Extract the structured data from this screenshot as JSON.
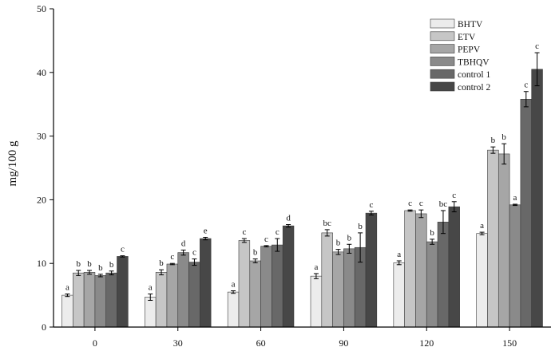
{
  "chart_data": {
    "type": "bar",
    "ylabel": "mg/100 g",
    "xlabel": "",
    "ylim": [
      0,
      50
    ],
    "yticks": [
      0,
      10,
      20,
      30,
      40,
      50
    ],
    "categories": [
      "0",
      "30",
      "60",
      "90",
      "120",
      "150"
    ],
    "legend_position": "top-right",
    "series": [
      {
        "name": "BHTV",
        "color": "#ececec",
        "values": [
          5.0,
          4.7,
          5.5,
          8.0,
          10.1,
          14.7
        ],
        "errors": [
          0.2,
          0.5,
          0.2,
          0.4,
          0.3,
          0.2
        ],
        "labels": [
          "a",
          "a",
          "a",
          "a",
          "a",
          "a"
        ]
      },
      {
        "name": "ETV",
        "color": "#c6c6c6",
        "values": [
          8.5,
          8.6,
          13.6,
          14.8,
          18.3,
          27.8
        ],
        "errors": [
          0.4,
          0.4,
          0.3,
          0.5,
          0.1,
          0.5
        ],
        "labels": [
          "b",
          "b",
          "c",
          "bc",
          "c",
          "b"
        ]
      },
      {
        "name": "PEPV",
        "color": "#a6a6a6",
        "values": [
          8.6,
          9.9,
          10.4,
          11.8,
          17.8,
          27.2
        ],
        "errors": [
          0.3,
          0.1,
          0.3,
          0.4,
          0.6,
          1.6
        ],
        "labels": [
          "b",
          "c",
          "b",
          "b",
          "c",
          "b"
        ]
      },
      {
        "name": "TBHQV",
        "color": "#8a8a8a",
        "values": [
          8.1,
          11.7,
          12.7,
          12.3,
          13.4,
          19.2
        ],
        "errors": [
          0.2,
          0.4,
          0.1,
          0.7,
          0.4,
          0.1
        ],
        "labels": [
          "b",
          "d",
          "c",
          "b",
          "b",
          "a"
        ]
      },
      {
        "name": "control 1",
        "color": "#686868",
        "values": [
          8.5,
          10.2,
          12.9,
          12.5,
          16.5,
          35.8
        ],
        "errors": [
          0.3,
          0.5,
          1.0,
          2.3,
          1.8,
          1.2
        ],
        "labels": [
          "b",
          "c",
          "c",
          "b",
          "bc",
          "c"
        ]
      },
      {
        "name": "control 2",
        "color": "#474747",
        "values": [
          11.1,
          13.9,
          15.9,
          17.9,
          18.9,
          40.5
        ],
        "errors": [
          0.1,
          0.2,
          0.2,
          0.3,
          0.8,
          2.6
        ],
        "labels": [
          "c",
          "e",
          "d",
          "c",
          "c",
          "c"
        ]
      }
    ]
  }
}
